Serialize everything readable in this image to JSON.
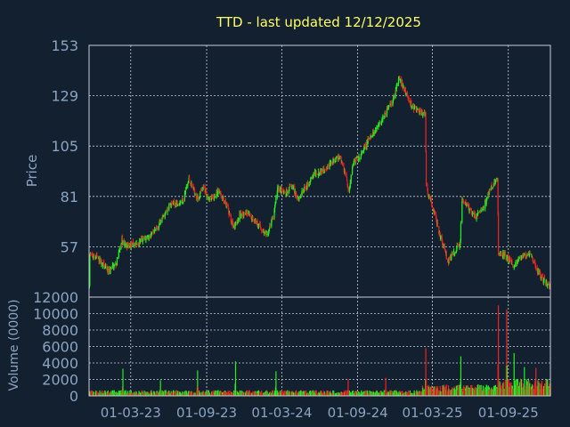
{
  "chart_data": [
    {
      "type": "candlestick",
      "title": "TTD - last updated 12/12/2025",
      "ylabel": "Price",
      "ylim": [
        33,
        153
      ],
      "y_ticks": [
        57,
        81,
        105,
        129,
        153
      ],
      "x_ticks": [
        "01-03-23",
        "01-09-23",
        "01-03-24",
        "01-09-24",
        "01-03-25",
        "01-09-25"
      ],
      "x_range": [
        "2022-11-20",
        "2025-12-12"
      ],
      "grid": true,
      "up_color": "#22ee22",
      "down_color": "#ee2222",
      "anchors": [
        [
          "2022-11-22",
          53
        ],
        [
          "2022-12-10",
          52
        ],
        [
          "2022-12-28",
          47
        ],
        [
          "2023-01-05",
          45
        ],
        [
          "2023-01-25",
          49
        ],
        [
          "2023-02-08",
          60
        ],
        [
          "2023-02-20",
          57
        ],
        [
          "2023-03-10",
          58
        ],
        [
          "2023-04-05",
          61
        ],
        [
          "2023-04-25",
          63
        ],
        [
          "2023-05-15",
          70
        ],
        [
          "2023-06-05",
          77
        ],
        [
          "2023-07-05",
          79
        ],
        [
          "2023-07-20",
          89
        ],
        [
          "2023-08-10",
          80
        ],
        [
          "2023-08-25",
          85
        ],
        [
          "2023-09-10",
          79
        ],
        [
          "2023-09-30",
          84
        ],
        [
          "2023-10-20",
          76
        ],
        [
          "2023-11-05",
          66
        ],
        [
          "2023-11-20",
          72
        ],
        [
          "2023-12-05",
          73
        ],
        [
          "2023-12-25",
          70
        ],
        [
          "2024-01-10",
          66
        ],
        [
          "2024-01-25",
          62
        ],
        [
          "2024-02-10",
          72
        ],
        [
          "2024-02-20",
          85
        ],
        [
          "2024-03-10",
          82
        ],
        [
          "2024-03-25",
          86
        ],
        [
          "2024-04-10",
          80
        ],
        [
          "2024-05-01",
          86
        ],
        [
          "2024-05-20",
          92
        ],
        [
          "2024-06-10",
          94
        ],
        [
          "2024-07-01",
          97
        ],
        [
          "2024-07-20",
          100
        ],
        [
          "2024-08-05",
          90
        ],
        [
          "2024-08-10",
          82
        ],
        [
          "2024-08-20",
          97
        ],
        [
          "2024-09-05",
          99
        ],
        [
          "2024-09-25",
          107
        ],
        [
          "2024-10-15",
          113
        ],
        [
          "2024-11-05",
          120
        ],
        [
          "2024-11-25",
          127
        ],
        [
          "2024-12-10",
          137
        ],
        [
          "2024-12-25",
          131
        ],
        [
          "2025-01-10",
          124
        ],
        [
          "2025-01-25",
          122
        ],
        [
          "2025-02-12",
          120
        ],
        [
          "2025-02-14",
          85
        ],
        [
          "2025-03-05",
          74
        ],
        [
          "2025-03-20",
          62
        ],
        [
          "2025-04-08",
          50
        ],
        [
          "2025-04-25",
          55
        ],
        [
          "2025-05-08",
          59
        ],
        [
          "2025-05-10",
          80
        ],
        [
          "2025-05-25",
          76
        ],
        [
          "2025-06-15",
          71
        ],
        [
          "2025-07-05",
          77
        ],
        [
          "2025-07-20",
          85
        ],
        [
          "2025-08-06",
          89
        ],
        [
          "2025-08-08",
          54
        ],
        [
          "2025-08-25",
          53
        ],
        [
          "2025-09-15",
          48
        ],
        [
          "2025-10-05",
          52
        ],
        [
          "2025-10-25",
          54
        ],
        [
          "2025-11-10",
          46
        ],
        [
          "2025-11-25",
          41
        ],
        [
          "2025-12-12",
          38
        ]
      ]
    },
    {
      "type": "bar",
      "ylabel": "Volume (0000)",
      "ylim": [
        0,
        12000
      ],
      "y_ticks": [
        0,
        2000,
        4000,
        6000,
        8000,
        10000,
        12000
      ],
      "spikes": [
        [
          "2023-02-10",
          3300
        ],
        [
          "2023-05-12",
          1900
        ],
        [
          "2023-08-10",
          3100
        ],
        [
          "2023-11-10",
          4200
        ],
        [
          "2024-02-16",
          3000
        ],
        [
          "2024-08-09",
          2000
        ],
        [
          "2024-11-08",
          2200
        ],
        [
          "2025-02-13",
          5800
        ],
        [
          "2025-05-09",
          4800
        ],
        [
          "2025-08-08",
          11000
        ],
        [
          "2025-08-28",
          10500
        ],
        [
          "2025-09-15",
          5200
        ],
        [
          "2025-10-10",
          3500
        ],
        [
          "2025-11-07",
          3400
        ]
      ]
    }
  ]
}
